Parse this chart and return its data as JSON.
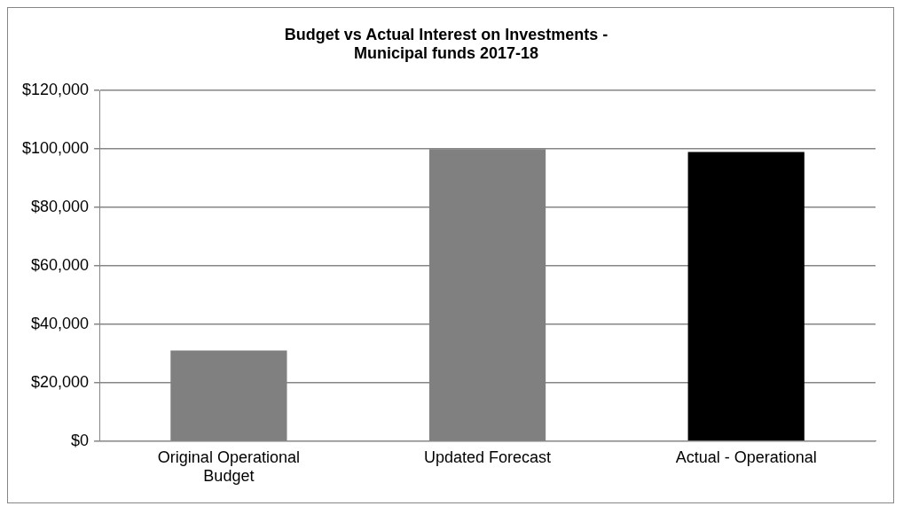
{
  "chart_data": {
    "type": "bar",
    "title": "Budget vs Actual Interest on Investments - Municipal funds 2017-18",
    "categories": [
      "Original Operational Budget",
      "Updated Forecast",
      "Actual - Operational"
    ],
    "values": [
      31000,
      100000,
      99000
    ],
    "colors": [
      "#808080",
      "#808080",
      "#000000"
    ],
    "ylim": [
      0,
      120000
    ],
    "yticks": [
      {
        "value": 0,
        "label": "$0"
      },
      {
        "value": 20000,
        "label": "$20,000"
      },
      {
        "value": 40000,
        "label": "$40,000"
      },
      {
        "value": 60000,
        "label": "$60,000"
      },
      {
        "value": 80000,
        "label": "$80,000"
      },
      {
        "value": 100000,
        "label": "$100,000"
      },
      {
        "value": 120000,
        "label": "$120,000"
      }
    ],
    "grid": "y",
    "legend": false
  }
}
